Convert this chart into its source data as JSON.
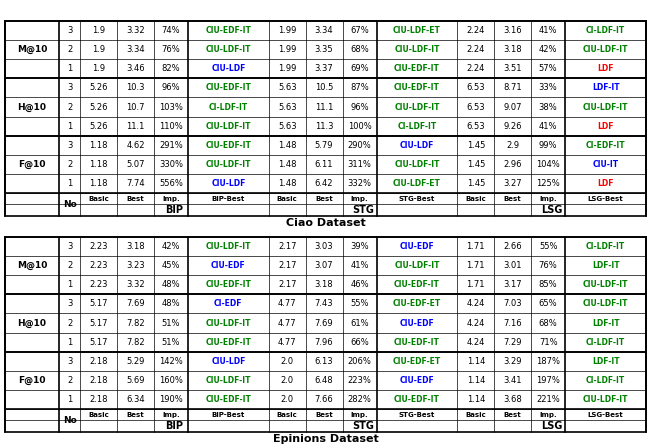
{
  "title1": "Epinions Dataset",
  "title2": "Ciao Dataset",
  "fig_bg": "#ffffff",
  "color_map": {
    "green": "#008000",
    "blue": "#0000ff",
    "red": "#ff0000",
    "black": "#000000"
  },
  "epinions": {
    "F@10": [
      [
        "1",
        "2.18",
        "6.34",
        "190%",
        "CIU-EDF-IT",
        "green",
        "2.0",
        "7.66",
        "282%",
        "CIU-EDF-IT",
        "green",
        "1.14",
        "3.68",
        "221%",
        "CIU-LDF-IT",
        "green"
      ],
      [
        "2",
        "2.18",
        "5.69",
        "160%",
        "CIU-LDF-IT",
        "green",
        "2.0",
        "6.48",
        "223%",
        "CIU-EDF",
        "blue",
        "1.14",
        "3.41",
        "197%",
        "CI-LDF-IT",
        "green"
      ],
      [
        "3",
        "2.18",
        "5.29",
        "142%",
        "CIU-LDF",
        "blue",
        "2.0",
        "6.13",
        "206%",
        "CIU-EDF-ET",
        "green",
        "1.14",
        "3.29",
        "187%",
        "LDF-IT",
        "green"
      ]
    ],
    "H@10": [
      [
        "1",
        "5.17",
        "7.82",
        "51%",
        "CIU-EDF-IT",
        "green",
        "4.77",
        "7.96",
        "66%",
        "CIU-EDF-IT",
        "green",
        "4.24",
        "7.29",
        "71%",
        "CI-LDF-IT",
        "green"
      ],
      [
        "2",
        "5.17",
        "7.82",
        "51%",
        "CIU-LDF-IT",
        "green",
        "4.77",
        "7.69",
        "61%",
        "CIU-EDF",
        "blue",
        "4.24",
        "7.16",
        "68%",
        "LDF-IT",
        "green"
      ],
      [
        "3",
        "5.17",
        "7.69",
        "48%",
        "CI-EDF",
        "blue",
        "4.77",
        "7.43",
        "55%",
        "CIU-EDF-ET",
        "green",
        "4.24",
        "7.03",
        "65%",
        "CIU-LDF-IT",
        "green"
      ]
    ],
    "M@10": [
      [
        "1",
        "2.23",
        "3.32",
        "48%",
        "CIU-EDF-IT",
        "green",
        "2.17",
        "3.18",
        "46%",
        "CIU-EDF-IT",
        "green",
        "1.71",
        "3.17",
        "85%",
        "CIU-LDF-IT",
        "green"
      ],
      [
        "2",
        "2.23",
        "3.23",
        "45%",
        "CIU-EDF",
        "blue",
        "2.17",
        "3.07",
        "41%",
        "CIU-LDF-IT",
        "green",
        "1.71",
        "3.01",
        "76%",
        "LDF-IT",
        "green"
      ],
      [
        "3",
        "2.23",
        "3.18",
        "42%",
        "CIU-LDF-IT",
        "green",
        "2.17",
        "3.03",
        "39%",
        "CIU-EDF",
        "blue",
        "1.71",
        "2.66",
        "55%",
        "CI-LDF-IT",
        "green"
      ]
    ]
  },
  "ciao": {
    "F@10": [
      [
        "1",
        "1.18",
        "7.74",
        "556%",
        "CIU-LDF",
        "blue",
        "1.48",
        "6.42",
        "332%",
        "CIU-LDF-ET",
        "green",
        "1.45",
        "3.27",
        "125%",
        "LDF",
        "red"
      ],
      [
        "2",
        "1.18",
        "5.07",
        "330%",
        "CIU-LDF-IT",
        "green",
        "1.48",
        "6.11",
        "311%",
        "CIU-LDF-IT",
        "green",
        "1.45",
        "2.96",
        "104%",
        "CIU-IT",
        "blue"
      ],
      [
        "3",
        "1.18",
        "4.62",
        "291%",
        "CIU-EDF-IT",
        "green",
        "1.48",
        "5.79",
        "290%",
        "CIU-LDF",
        "blue",
        "1.45",
        "2.9",
        "99%",
        "CI-EDF-IT",
        "green"
      ]
    ],
    "H@10": [
      [
        "1",
        "5.26",
        "11.1",
        "110%",
        "CIU-LDF-IT",
        "green",
        "5.63",
        "11.3",
        "100%",
        "CI-LDF-IT",
        "green",
        "6.53",
        "9.26",
        "41%",
        "LDF",
        "red"
      ],
      [
        "2",
        "5.26",
        "10.7",
        "103%",
        "CI-LDF-IT",
        "green",
        "5.63",
        "11.1",
        "96%",
        "CIU-LDF-IT",
        "green",
        "6.53",
        "9.07",
        "38%",
        "CIU-LDF-IT",
        "green"
      ],
      [
        "3",
        "5.26",
        "10.3",
        "96%",
        "CIU-EDF-IT",
        "green",
        "5.63",
        "10.5",
        "87%",
        "CIU-EDF-IT",
        "green",
        "6.53",
        "8.71",
        "33%",
        "LDF-IT",
        "blue"
      ]
    ],
    "M@10": [
      [
        "1",
        "1.9",
        "3.46",
        "82%",
        "CIU-LDF",
        "blue",
        "1.99",
        "3.37",
        "69%",
        "CIU-EDF-IT",
        "green",
        "2.24",
        "3.51",
        "57%",
        "LDF",
        "red"
      ],
      [
        "2",
        "1.9",
        "3.34",
        "76%",
        "CIU-LDF-IT",
        "green",
        "1.99",
        "3.35",
        "68%",
        "CIU-LDF-IT",
        "green",
        "2.24",
        "3.18",
        "42%",
        "CIU-LDF-IT",
        "green"
      ],
      [
        "3",
        "1.9",
        "3.32",
        "74%",
        "CIU-EDF-IT",
        "green",
        "1.99",
        "3.34",
        "67%",
        "CIU-LDF-ET",
        "green",
        "2.24",
        "3.16",
        "41%",
        "CI-LDF-IT",
        "green"
      ]
    ]
  }
}
